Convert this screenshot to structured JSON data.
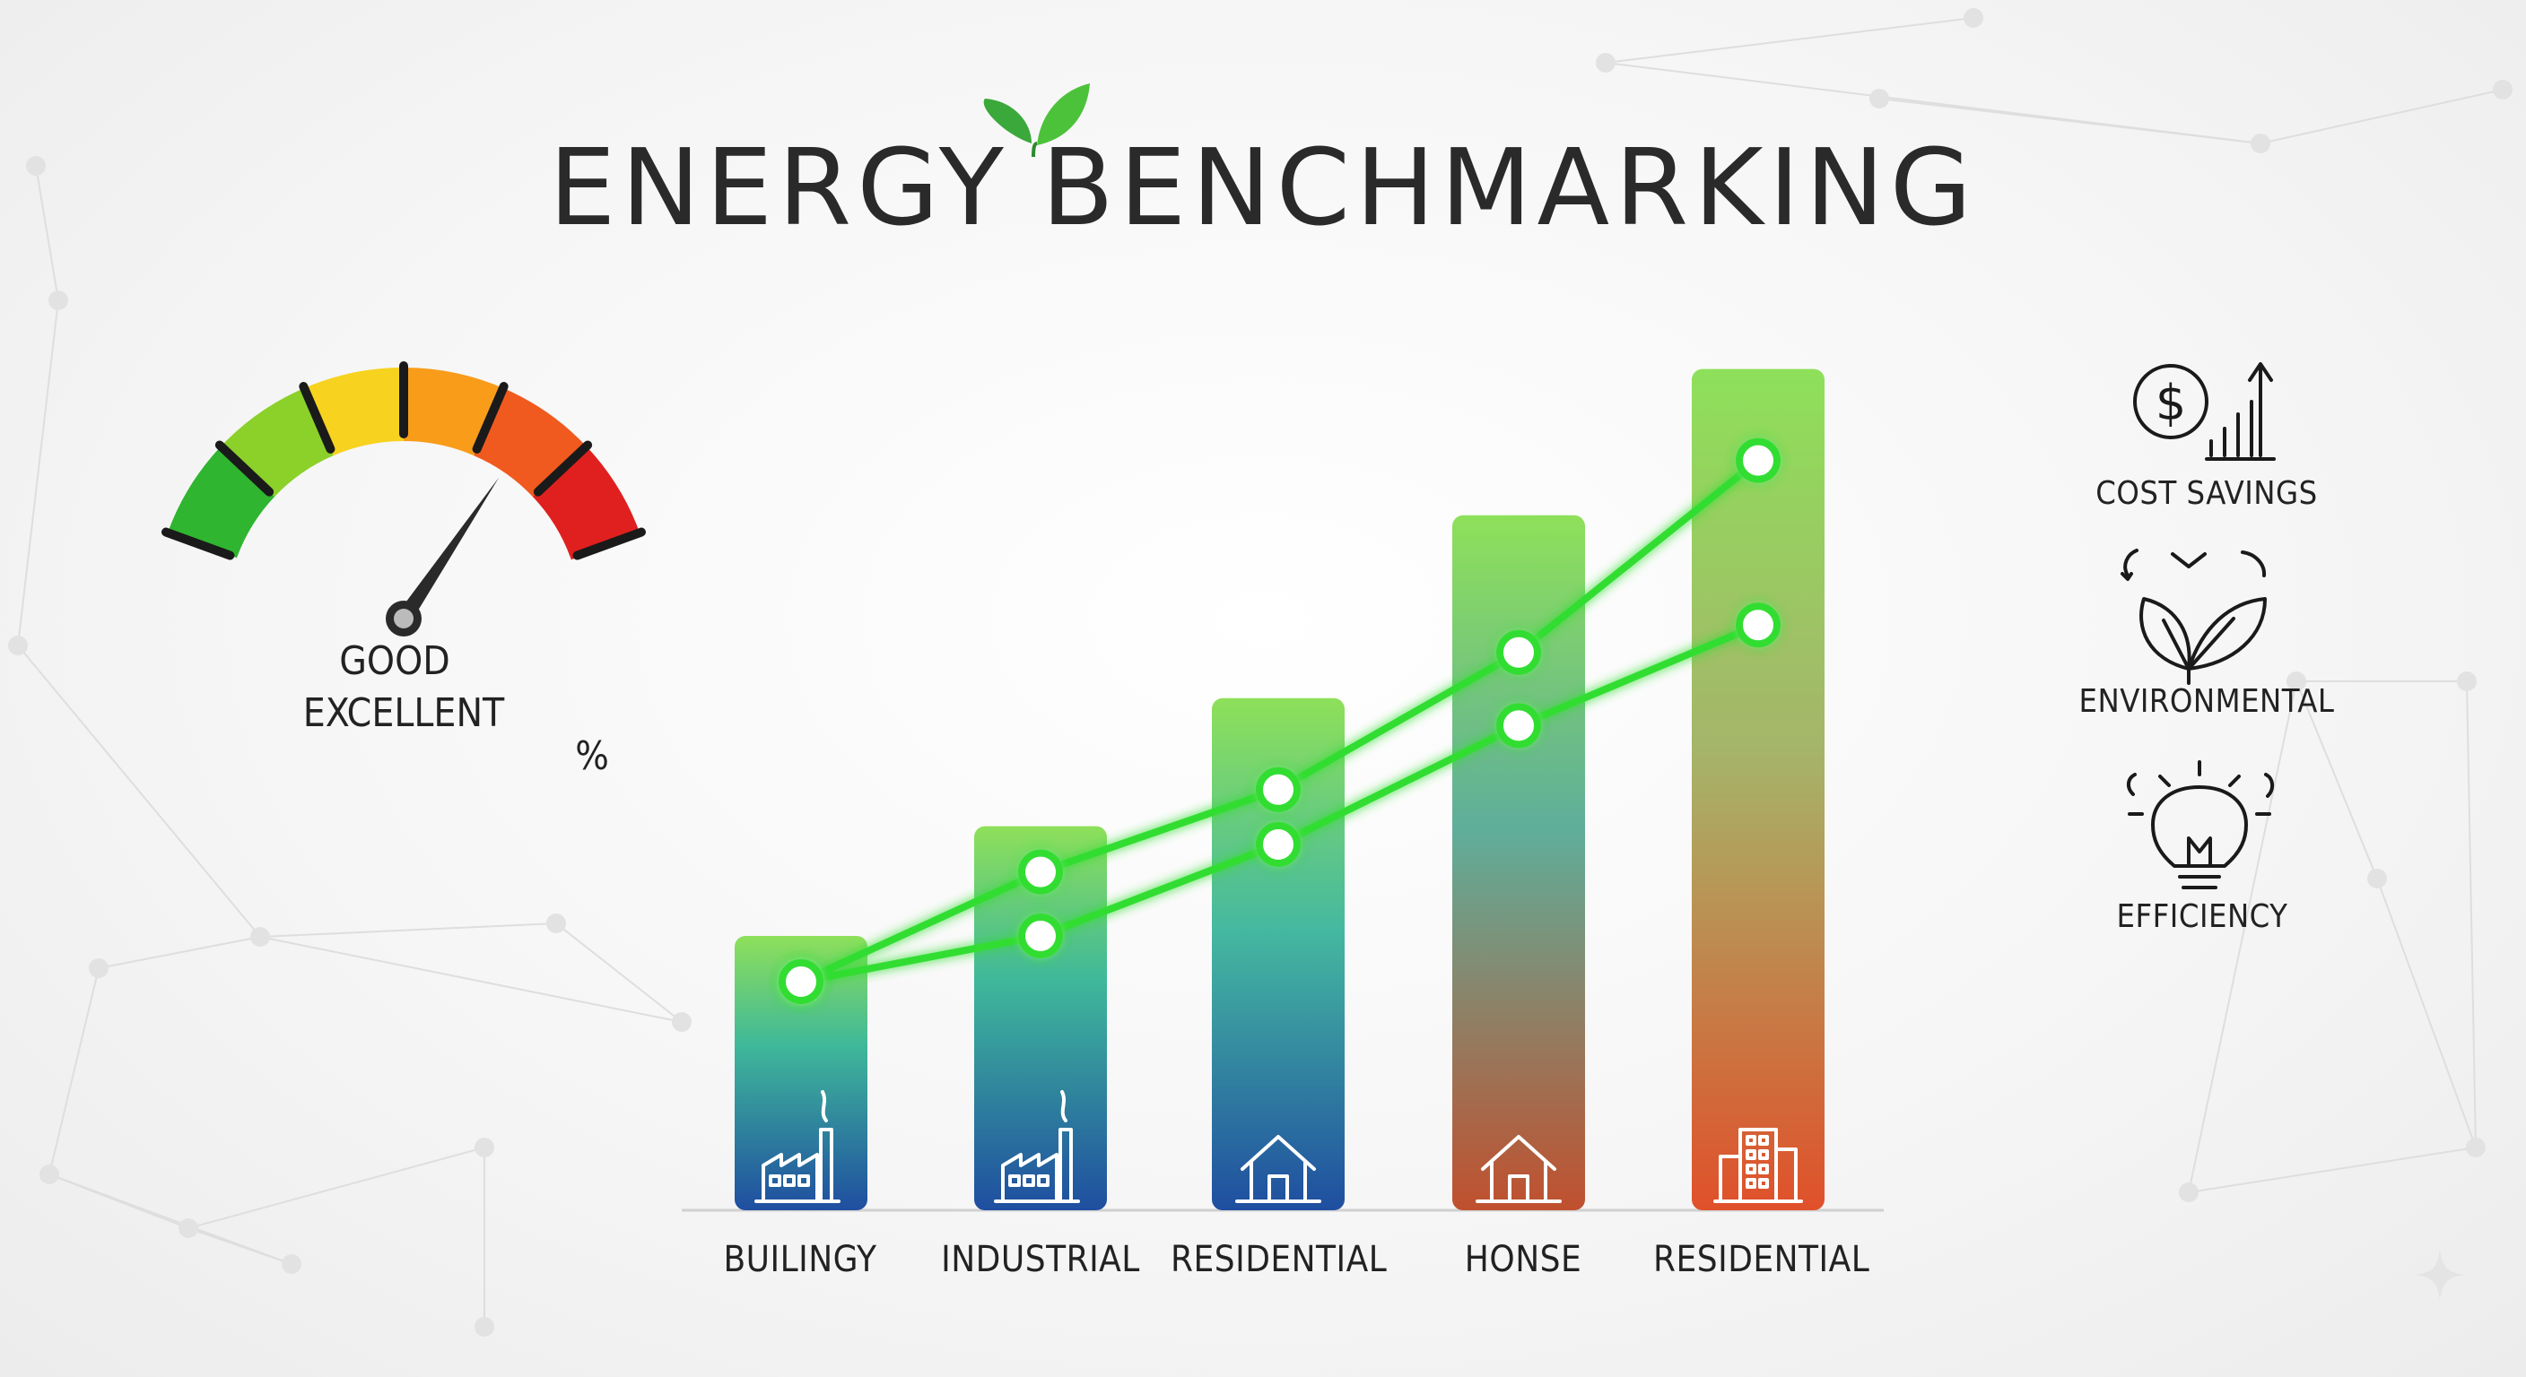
{
  "title": {
    "word1": "ENERGY",
    "word2": "BENCHMARKING"
  },
  "gauge": {
    "label_good": "GOOD",
    "label_excellent": "EXCELLENT",
    "unit": "%",
    "colors": [
      "#2fb52f",
      "#8cd02a",
      "#f7d21e",
      "#f89c1a",
      "#f05a1e",
      "#e0201e"
    ]
  },
  "side_panel": {
    "items": [
      {
        "label": "COST SAVINGS",
        "icon": "dollar-growth-icon"
      },
      {
        "label": "ENVIRONMENTAL",
        "icon": "leaf-cycle-icon"
      },
      {
        "label": "EFFICIENCY",
        "icon": "lightbulb-icon"
      }
    ]
  },
  "chart_data": {
    "type": "bar",
    "categories": [
      "BUILINGY",
      "INDUSTRIAL",
      "RESIDENTIAL",
      "HONSE",
      "RESIDENTIAL"
    ],
    "category_icons": [
      "factory-icon",
      "factory-icon",
      "house-icon",
      "house-icon",
      "building-icon"
    ],
    "values": [
      30,
      42,
      56,
      76,
      92
    ],
    "ylim": [
      0,
      100
    ],
    "grid": false,
    "series": [
      {
        "type": "line",
        "values": [
          25,
          37,
          46,
          61,
          82
        ]
      },
      {
        "type": "line",
        "values": [
          25,
          30,
          40,
          53,
          64
        ]
      }
    ],
    "colors": {
      "bar_top": "#8ee05a",
      "bar_bottom_cool": "#1f4ea0",
      "bar_bottom_warm": "#e0502a",
      "line": "#33dd33"
    }
  }
}
